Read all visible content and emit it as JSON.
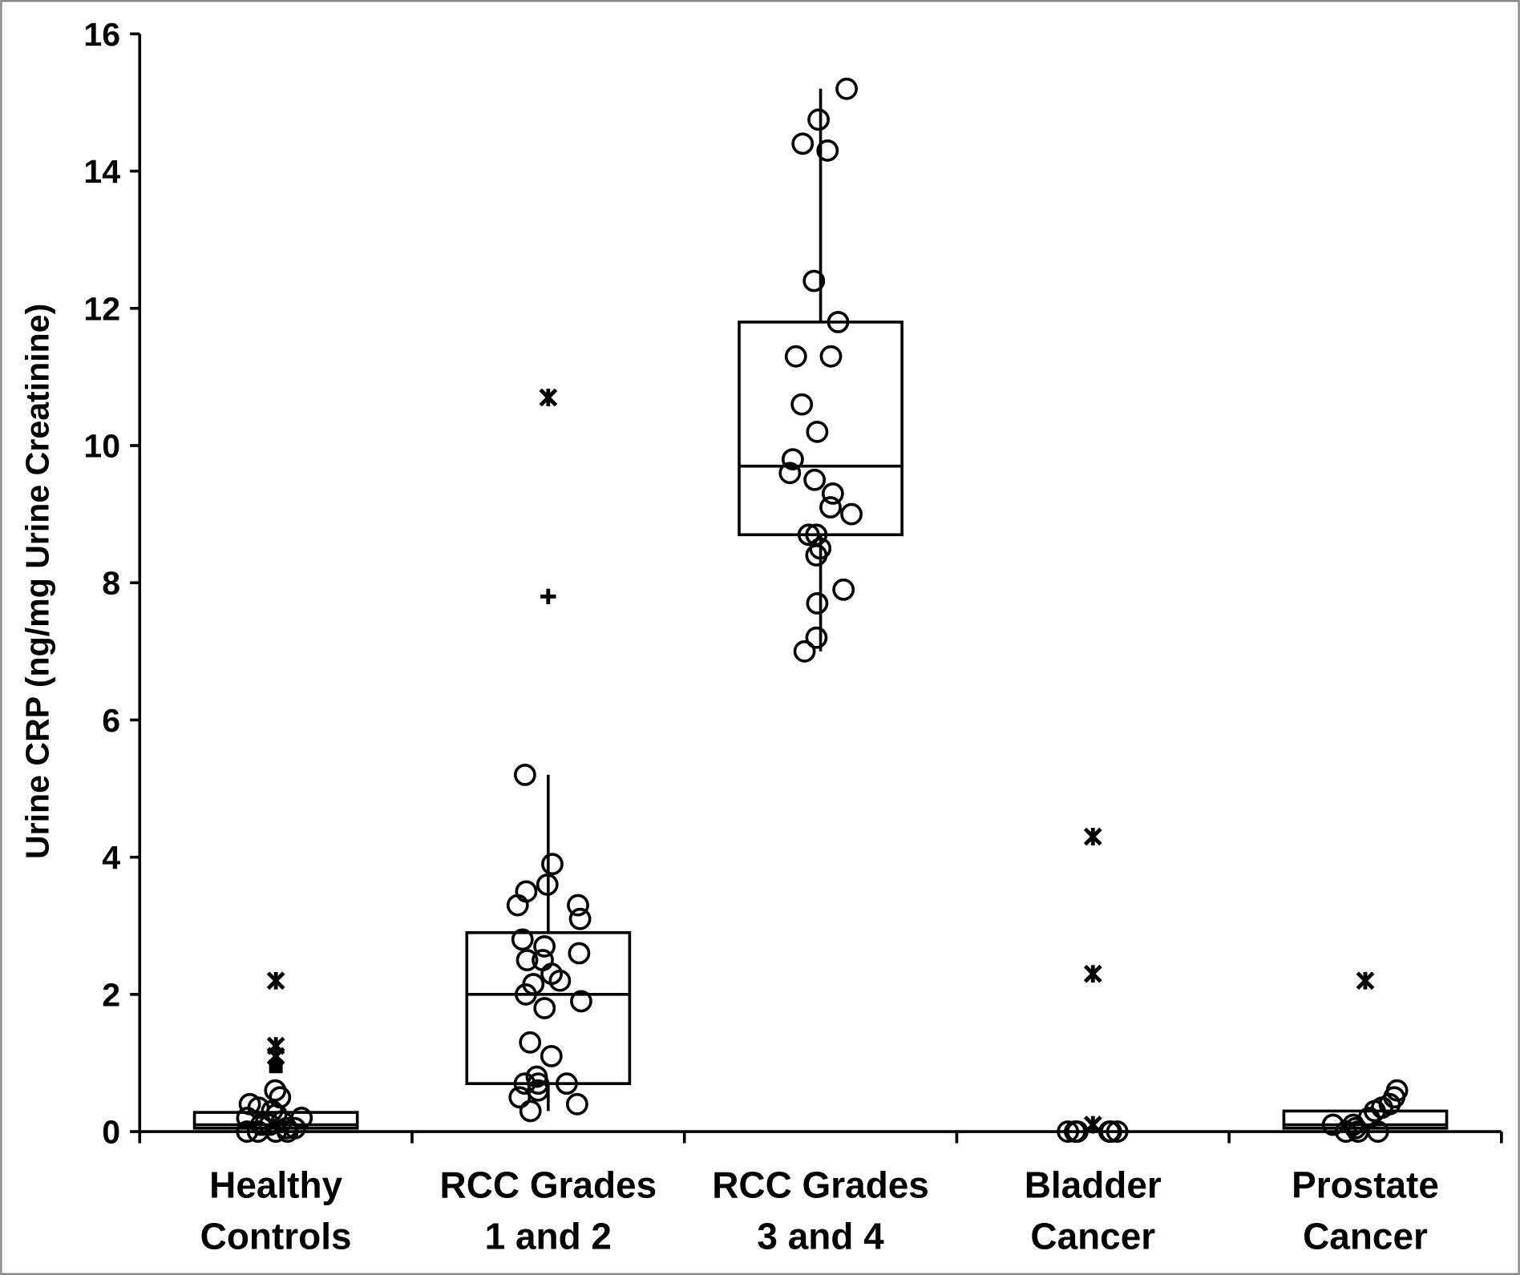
{
  "chart_data": {
    "type": "box-and-scatter",
    "title": "",
    "xlabel": "",
    "ylabel": "Urine CRP (ng/mg Urine Creatinine)",
    "ylim": [
      0,
      16
    ],
    "yticks": [
      "0",
      "2",
      "4",
      "6",
      "8",
      "10",
      "12",
      "14",
      "16"
    ],
    "grid": false,
    "categories": [
      {
        "line1": "Healthy",
        "line2": "Controls"
      },
      {
        "line1": "RCC Grades",
        "line2": "1 and 2"
      },
      {
        "line1": "RCC Grades",
        "line2": "3 and 4"
      },
      {
        "line1": "Bladder",
        "line2": "Cancer"
      },
      {
        "line1": "Prostate",
        "line2": "Cancer"
      }
    ],
    "groups": [
      {
        "box": {
          "q1": 0.05,
          "median": 0.1,
          "q3": 0.28,
          "whisker_low": 0,
          "whisker_high": 0.28
        },
        "points": [
          0.6,
          0.5,
          0.4,
          0.35,
          0.3,
          0.25,
          0.2,
          0.2,
          0.15,
          0.1,
          0.1,
          0.05,
          0.05,
          0,
          0,
          0,
          0
        ],
        "outliers_x": [
          2.2,
          1.25,
          1.1
        ],
        "outliers_square": [
          0.95
        ],
        "outliers_plus": []
      },
      {
        "box": {
          "q1": 0.7,
          "median": 2.0,
          "q3": 2.9,
          "whisker_low": 0.3,
          "whisker_high": 5.2
        },
        "points": [
          5.2,
          3.9,
          3.6,
          3.5,
          3.3,
          3.3,
          3.1,
          2.8,
          2.7,
          2.6,
          2.5,
          2.5,
          2.3,
          2.2,
          2.15,
          2.0,
          1.9,
          1.8,
          1.3,
          1.1,
          0.8,
          0.7,
          0.7,
          0.7,
          0.6,
          0.5,
          0.4,
          0.3
        ],
        "outliers_x": [
          10.7
        ],
        "outliers_square": [],
        "outliers_plus": [
          7.8
        ]
      },
      {
        "box": {
          "q1": 8.7,
          "median": 9.7,
          "q3": 11.8,
          "whisker_low": 7.0,
          "whisker_high": 15.2
        },
        "points": [
          15.2,
          14.75,
          14.4,
          14.3,
          12.4,
          11.8,
          11.3,
          11.3,
          10.6,
          10.2,
          9.8,
          9.6,
          9.5,
          9.3,
          9.1,
          9.0,
          8.7,
          8.7,
          8.5,
          8.4,
          7.9,
          7.7,
          7.2,
          7.0
        ],
        "outliers_x": [],
        "outliers_square": [],
        "outliers_plus": []
      },
      {
        "box": null,
        "points": [
          0,
          0,
          0,
          0,
          0,
          0
        ],
        "outliers_x": [
          4.3,
          2.3,
          0.1
        ],
        "outliers_square": [],
        "outliers_plus": []
      },
      {
        "box": {
          "q1": 0.05,
          "median": 0.1,
          "q3": 0.3,
          "whisker_low": 0,
          "whisker_high": 0.3
        },
        "points": [
          0.6,
          0.5,
          0.4,
          0.35,
          0.3,
          0.2,
          0.1,
          0.1,
          0.05,
          0,
          0,
          0
        ],
        "outliers_x": [
          2.2
        ],
        "outliers_square": [],
        "outliers_plus": []
      }
    ]
  }
}
